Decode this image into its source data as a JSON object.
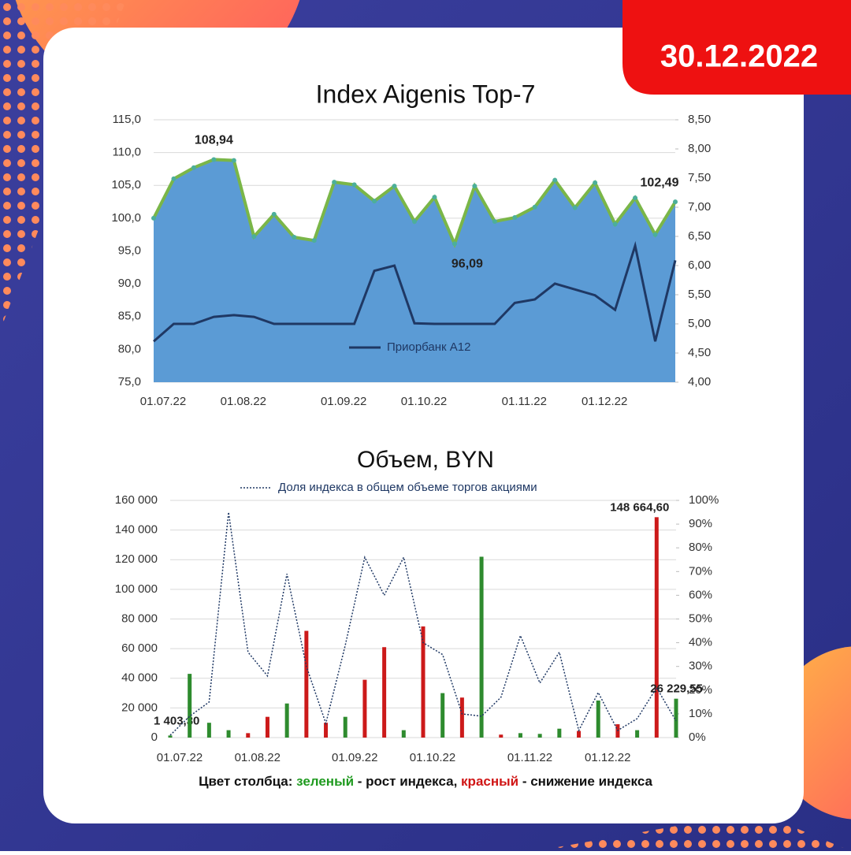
{
  "badge": {
    "date": "30.12.2022"
  },
  "chart_data": [
    {
      "type": "area",
      "title": "Index Aigenis Top-7",
      "categories": [
        "01.07.22",
        null,
        null,
        null,
        "01.08.22",
        null,
        null,
        null,
        null,
        "01.09.22",
        null,
        null,
        null,
        "01.10.22",
        null,
        null,
        null,
        null,
        "01.11.22",
        null,
        null,
        null,
        "01.12.22",
        null,
        null,
        null,
        null
      ],
      "series": [
        {
          "color": "#5b9bd5",
          "line_color": "#7ab648",
          "values": [
            100.0,
            106.0,
            107.7,
            108.94,
            108.8,
            97.2,
            100.6,
            97.1,
            96.6,
            105.5,
            105.1,
            102.6,
            104.9,
            99.5,
            103.2,
            96.09,
            104.9,
            99.5,
            100.1,
            101.7,
            105.8,
            101.6,
            105.4,
            99.1,
            103.1,
            97.5,
            102.49
          ],
          "value_labels": [
            null,
            null,
            null,
            "108,94",
            null,
            null,
            null,
            null,
            null,
            null,
            null,
            null,
            null,
            null,
            null,
            "96,09",
            null,
            null,
            null,
            null,
            null,
            null,
            null,
            null,
            null,
            null,
            "102,49"
          ]
        },
        {
          "name": "Приорбанк A12",
          "color": "#1f3864",
          "axis": "y2",
          "values": [
            4.7,
            5.0,
            5.0,
            5.12,
            5.15,
            5.12,
            5.0,
            5.0,
            5.0,
            5.0,
            5.0,
            5.91,
            6.0,
            5.01,
            5.0,
            5.0,
            5.0,
            5.0,
            5.36,
            5.42,
            5.69,
            5.59,
            5.49,
            5.24,
            6.34,
            4.7,
            6.09
          ]
        }
      ],
      "ylim": [
        75,
        115
      ],
      "yticks": [
        {
          "value": 75,
          "label": "75,0"
        },
        {
          "value": 80,
          "label": "80,0"
        },
        {
          "value": 85,
          "label": "85,0"
        },
        {
          "value": 90,
          "label": "90,0"
        },
        {
          "value": 95,
          "label": "95,0"
        },
        {
          "value": 100,
          "label": "100,0"
        },
        {
          "value": 105,
          "label": "105,0"
        },
        {
          "value": 110,
          "label": "110,0"
        },
        {
          "value": 115,
          "label": "115,0"
        }
      ],
      "y2lim": [
        4,
        8.5
      ],
      "y2ticks": [
        {
          "value": 4,
          "label": "4,00"
        },
        {
          "value": 4.5,
          "label": "4,50"
        },
        {
          "value": 5,
          "label": "5,00"
        },
        {
          "value": 5.5,
          "label": "5,50"
        },
        {
          "value": 6,
          "label": "6,00"
        },
        {
          "value": 6.5,
          "label": "6,50"
        },
        {
          "value": 7,
          "label": "7,00"
        },
        {
          "value": 7.5,
          "label": "7,50"
        },
        {
          "value": 8,
          "label": "8,00"
        },
        {
          "value": 8.5,
          "label": "8,50"
        }
      ],
      "grid": true
    },
    {
      "type": "bar",
      "title": "Объем, BYN",
      "categories": [
        "01.07.22",
        null,
        null,
        null,
        "01.08.22",
        null,
        null,
        null,
        null,
        "01.09.22",
        null,
        null,
        null,
        "01.10.22",
        null,
        null,
        null,
        null,
        "01.11.22",
        null,
        null,
        null,
        "01.12.22",
        null,
        null,
        null,
        null
      ],
      "series": [
        {
          "values": [
            1403.3,
            43000,
            10000,
            5000,
            3000,
            14000,
            23000,
            72000,
            10000,
            14000,
            39000,
            61000,
            5000,
            75000,
            30000,
            27000,
            122000,
            2000,
            3000,
            2500,
            6000,
            4500,
            25000,
            9000,
            5000,
            148664.6,
            26229.55
          ],
          "colors": [
            "#2e8b2e",
            "#2e8b2e",
            "#2e8b2e",
            "#2e8b2e",
            "#cc1a1a",
            "#cc1a1a",
            "#2e8b2e",
            "#cc1a1a",
            "#cc1a1a",
            "#2e8b2e",
            "#cc1a1a",
            "#cc1a1a",
            "#2e8b2e",
            "#cc1a1a",
            "#2e8b2e",
            "#cc1a1a",
            "#2e8b2e",
            "#cc1a1a",
            "#2e8b2e",
            "#2e8b2e",
            "#2e8b2e",
            "#cc1a1a",
            "#2e8b2e",
            "#cc1a1a",
            "#2e8b2e",
            "#cc1a1a",
            "#2e8b2e"
          ],
          "value_labels": [
            "1 403,30",
            null,
            null,
            null,
            null,
            null,
            null,
            null,
            null,
            null,
            null,
            null,
            null,
            null,
            null,
            null,
            null,
            null,
            null,
            null,
            null,
            null,
            null,
            null,
            null,
            "148 664,60",
            "26 229,55"
          ]
        },
        {
          "name": "Доля индекса в общем объеме торгов акциями",
          "type": "line",
          "dash": true,
          "color": "#1f3864",
          "axis": "y2",
          "values": [
            1,
            9,
            15,
            95,
            36,
            26,
            69,
            30,
            6,
            39,
            76,
            60,
            76,
            40,
            35,
            10,
            9,
            17,
            43,
            23,
            36,
            3,
            19,
            3,
            8,
            21,
            7
          ]
        }
      ],
      "ylim": [
        0,
        160000
      ],
      "yticks": [
        0,
        {
          "value": 20000,
          "label": "20 000"
        },
        {
          "value": 40000,
          "label": "40 000"
        },
        {
          "value": 60000,
          "label": "60 000"
        },
        {
          "value": 80000,
          "label": "80 000"
        },
        {
          "value": 100000,
          "label": "100 000"
        },
        {
          "value": 120000,
          "label": "120 000"
        },
        {
          "value": 140000,
          "label": "140 000"
        },
        {
          "value": 160000,
          "label": "160 000"
        }
      ],
      "y2lim": [
        0,
        100
      ],
      "y2ticks": [
        {
          "value": 0,
          "label": "0%"
        },
        {
          "value": 10,
          "label": "10%"
        },
        {
          "value": 20,
          "label": "20%"
        },
        {
          "value": 30,
          "label": "30%"
        },
        {
          "value": 40,
          "label": "40%"
        },
        {
          "value": 50,
          "label": "50%"
        },
        {
          "value": 60,
          "label": "60%"
        },
        {
          "value": 70,
          "label": "70%"
        },
        {
          "value": 80,
          "label": "80%"
        },
        {
          "value": 90,
          "label": "90%"
        },
        {
          "value": 100,
          "label": "100%"
        }
      ],
      "grid": true
    }
  ],
  "note": {
    "prefix": "Цвет столбца:",
    "green": "зеленый",
    "middle": "- рост индекса,",
    "red": "красный",
    "suffix": "- снижение индекса"
  }
}
